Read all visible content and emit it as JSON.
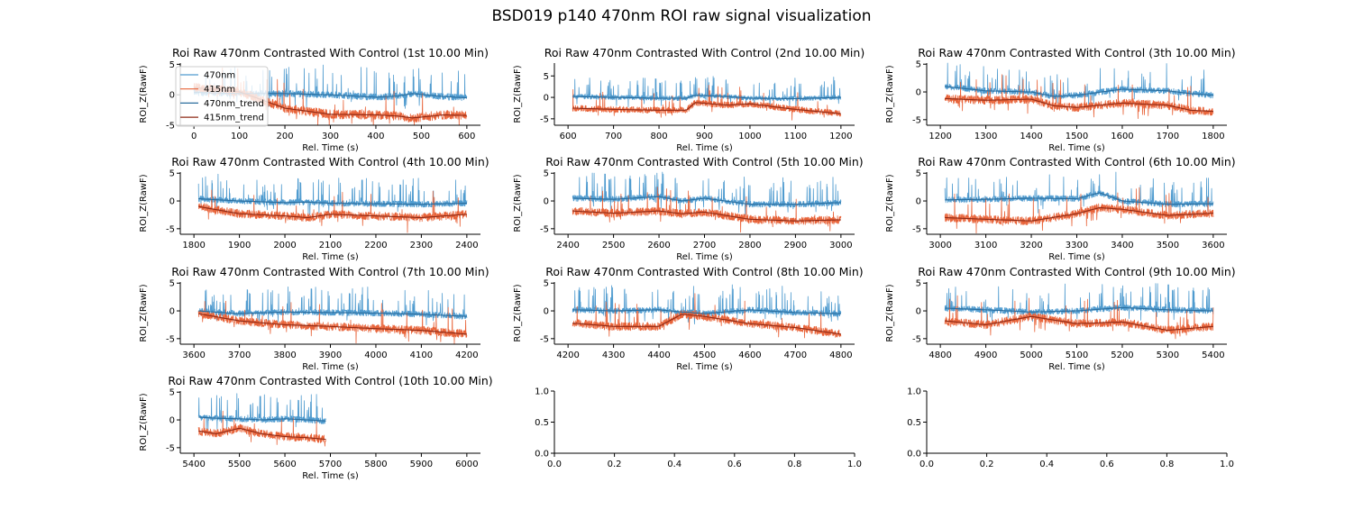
{
  "figure": {
    "title": "BSD019 p140 470nm ROI  raw signal visualization"
  },
  "legend": [
    "470nm",
    "415nm",
    "470nm_trend",
    "415nm_trend"
  ],
  "colors": {
    "470nm": "#4f9bcf",
    "415nm": "#e8643a",
    "470nm_trend": "#2b6e9e",
    "415nm_trend": "#8e2a16"
  },
  "chart_data": [
    {
      "type": "line",
      "title": "Roi Raw 470nm Contrasted With Control (1st 10.00 Min)",
      "xlabel": "Rel. Time (s)",
      "ylabel": "ROI_Z(RawF)",
      "xlim": [
        -30,
        630
      ],
      "ylim": [
        -5,
        5.2
      ],
      "xticks": [
        0,
        100,
        200,
        300,
        400,
        500,
        600
      ],
      "yticks": [
        -5,
        0,
        5
      ],
      "trend": {
        "x": [
          0,
          100,
          200,
          300,
          400,
          450,
          480,
          550,
          600
        ],
        "470nm": [
          0.4,
          0.2,
          0.2,
          0.0,
          -0.4,
          -0.2,
          0.2,
          -0.3,
          -0.5
        ],
        "415nm": [
          1.2,
          0.5,
          -2.2,
          -3.2,
          -3.3,
          -3.5,
          -3.8,
          -3.3,
          -3.4
        ]
      },
      "data_end": 600,
      "legend_visible": true
    },
    {
      "type": "line",
      "title": "Roi Raw 470nm Contrasted With Control (2nd 10.00 Min)",
      "xlabel": "Rel. Time (s)",
      "ylabel": "ROI_Z(RawF)",
      "xlim": [
        570,
        1230
      ],
      "ylim": [
        -6.5,
        8
      ],
      "xticks": [
        600,
        700,
        800,
        900,
        1000,
        1100,
        1200
      ],
      "yticks": [
        -5,
        0,
        5
      ],
      "trend": {
        "x": [
          610,
          700,
          800,
          860,
          880,
          950,
          1000,
          1100,
          1200
        ],
        "470nm": [
          0.2,
          0.0,
          -0.2,
          -0.2,
          0.5,
          0.2,
          -0.2,
          -0.3,
          0.0
        ],
        "415nm": [
          -2.5,
          -2.8,
          -3.0,
          -3.0,
          -1.2,
          -1.8,
          -1.5,
          -2.8,
          -3.8
        ]
      },
      "data_end": 1200
    },
    {
      "type": "line",
      "title": "Roi Raw 470nm Contrasted With Control (3th 10.00 Min)",
      "xlabel": "Rel. Time (s)",
      "ylabel": "ROI_Z(RawF)",
      "xlim": [
        1170,
        1830
      ],
      "ylim": [
        -6,
        5.2
      ],
      "xticks": [
        1200,
        1300,
        1400,
        1500,
        1600,
        1700,
        1800
      ],
      "yticks": [
        -5,
        0,
        5
      ],
      "trend": {
        "x": [
          1210,
          1300,
          1400,
          1450,
          1500,
          1600,
          1700,
          1750,
          1800
        ],
        "470nm": [
          1.0,
          0.2,
          0.0,
          -0.8,
          -0.6,
          0.5,
          0.2,
          -0.3,
          -0.6
        ],
        "415nm": [
          -1.2,
          -1.5,
          -1.3,
          -2.5,
          -2.8,
          -2.0,
          -2.4,
          -3.3,
          -3.5
        ]
      },
      "data_end": 1800
    },
    {
      "type": "line",
      "title": "Roi Raw 470nm Contrasted With Control (4th 10.00 Min)",
      "xlabel": "Rel. Time (s)",
      "ylabel": "ROI_Z(RawF)",
      "xlim": [
        1770,
        2430
      ],
      "ylim": [
        -6,
        5.2
      ],
      "xticks": [
        1800,
        1900,
        2000,
        2100,
        2200,
        2300,
        2400
      ],
      "yticks": [
        -5,
        0,
        5
      ],
      "trend": {
        "x": [
          1810,
          1900,
          2000,
          2050,
          2100,
          2200,
          2300,
          2400
        ],
        "470nm": [
          0.4,
          0.0,
          -0.3,
          -0.2,
          -0.4,
          -0.5,
          -0.6,
          -0.4
        ],
        "415nm": [
          -1.0,
          -2.3,
          -2.7,
          -3.0,
          -2.4,
          -2.7,
          -3.0,
          -2.4
        ]
      },
      "data_end": 2400
    },
    {
      "type": "line",
      "title": "Roi Raw 470nm Contrasted With Control (5th 10.00 Min)",
      "xlabel": "Rel. Time (s)",
      "ylabel": "ROI_Z(RawF)",
      "xlim": [
        2370,
        3030
      ],
      "ylim": [
        -6,
        5.2
      ],
      "xticks": [
        2400,
        2500,
        2600,
        2700,
        2800,
        2900,
        3000
      ],
      "yticks": [
        -5,
        0,
        5
      ],
      "trend": {
        "x": [
          2410,
          2500,
          2600,
          2650,
          2700,
          2800,
          2900,
          3000
        ],
        "470nm": [
          0.5,
          0.3,
          0.8,
          0.0,
          0.5,
          -0.6,
          -0.6,
          -0.3
        ],
        "415nm": [
          -1.8,
          -2.2,
          -1.8,
          -2.3,
          -2.0,
          -3.3,
          -3.6,
          -3.4
        ]
      },
      "data_end": 3000
    },
    {
      "type": "line",
      "title": "Roi Raw 470nm Contrasted With Control (6th 10.00 Min)",
      "xlabel": "Rel. Time (s)",
      "ylabel": "ROI_Z(RawF)",
      "xlim": [
        2970,
        3630
      ],
      "ylim": [
        -6,
        5.2
      ],
      "xticks": [
        3000,
        3100,
        3200,
        3300,
        3400,
        3500,
        3600
      ],
      "yticks": [
        -5,
        0,
        5
      ],
      "trend": {
        "x": [
          3010,
          3100,
          3200,
          3300,
          3350,
          3400,
          3500,
          3600
        ],
        "470nm": [
          0.2,
          0.3,
          0.5,
          0.4,
          1.5,
          0.0,
          -0.6,
          -0.5
        ],
        "415nm": [
          -3.0,
          -3.3,
          -3.6,
          -2.3,
          -1.2,
          -1.5,
          -2.6,
          -2.2
        ]
      },
      "data_end": 3600
    },
    {
      "type": "line",
      "title": "Roi Raw 470nm Contrasted With Control (7th 10.00 Min)",
      "xlabel": "Rel. Time (s)",
      "ylabel": "ROI_Z(RawF)",
      "xlim": [
        3570,
        4230
      ],
      "ylim": [
        -6,
        5.2
      ],
      "xticks": [
        3600,
        3700,
        3800,
        3900,
        4000,
        4100,
        4200
      ],
      "yticks": [
        -5,
        0,
        5
      ],
      "trend": {
        "x": [
          3610,
          3700,
          3800,
          3900,
          4000,
          4100,
          4200
        ],
        "470nm": [
          0.0,
          -0.5,
          -0.2,
          -0.3,
          -0.4,
          -0.6,
          -1.0
        ],
        "415nm": [
          -0.5,
          -1.8,
          -2.5,
          -2.8,
          -3.2,
          -3.5,
          -4.2
        ]
      },
      "data_end": 4200
    },
    {
      "type": "line",
      "title": "Roi Raw 470nm Contrasted With Control (8th 10.00 Min)",
      "xlabel": "Rel. Time (s)",
      "ylabel": "ROI_Z(RawF)",
      "xlim": [
        4170,
        4830
      ],
      "ylim": [
        -6,
        5.2
      ],
      "xticks": [
        4200,
        4300,
        4400,
        4500,
        4600,
        4700,
        4800
      ],
      "yticks": [
        -5,
        0,
        5
      ],
      "trend": {
        "x": [
          4210,
          4300,
          4400,
          4450,
          4500,
          4600,
          4700,
          4800
        ],
        "470nm": [
          0.2,
          0.0,
          0.2,
          -0.2,
          -0.5,
          0.2,
          -0.3,
          -0.5
        ],
        "415nm": [
          -2.2,
          -2.8,
          -2.8,
          -0.6,
          -1.0,
          -2.3,
          -3.0,
          -4.2
        ]
      },
      "data_end": 4800
    },
    {
      "type": "line",
      "title": "Roi Raw 470nm Contrasted With Control (9th 10.00 Min)",
      "xlabel": "Rel. Time (s)",
      "ylabel": "ROI_Z(RawF)",
      "xlim": [
        4770,
        5430
      ],
      "ylim": [
        -6,
        5.2
      ],
      "xticks": [
        4800,
        4900,
        5000,
        5100,
        5200,
        5300,
        5400
      ],
      "yticks": [
        -5,
        0,
        5
      ],
      "trend": {
        "x": [
          4810,
          4900,
          5000,
          5100,
          5200,
          5300,
          5400
        ],
        "470nm": [
          0.5,
          0.2,
          -0.2,
          0.0,
          0.6,
          0.2,
          0.0
        ],
        "415nm": [
          -1.8,
          -2.5,
          -1.0,
          -2.3,
          -2.0,
          -3.5,
          -2.8
        ]
      },
      "data_end": 5400
    },
    {
      "type": "line",
      "title": "Roi Raw 470nm Contrasted With Control (10th 10.00 Min)",
      "xlabel": "Rel. Time (s)",
      "ylabel": "ROI_Z(RawF)",
      "xlim": [
        5370,
        6030
      ],
      "ylim": [
        -6,
        5.2
      ],
      "xticks": [
        5400,
        5500,
        5600,
        5700,
        5800,
        5900,
        6000
      ],
      "yticks": [
        -5,
        0,
        5
      ],
      "trend": {
        "x": [
          5410,
          5450,
          5500,
          5550,
          5600,
          5650,
          5690
        ],
        "470nm": [
          0.5,
          0.3,
          0.2,
          0.0,
          0.2,
          0.0,
          -0.2
        ],
        "415nm": [
          -2.0,
          -2.5,
          -1.5,
          -2.5,
          -3.0,
          -3.2,
          -3.5
        ]
      },
      "data_end": 5690
    },
    {
      "type": "line",
      "title": "",
      "xlabel": "",
      "ylabel": "",
      "xlim": [
        0,
        1
      ],
      "ylim": [
        0,
        1
      ],
      "xticks": [
        0.0,
        0.2,
        0.4,
        0.6,
        0.8,
        1.0
      ],
      "yticks": [
        0.0,
        0.5,
        1.0
      ],
      "empty": true
    },
    {
      "type": "line",
      "title": "",
      "xlabel": "",
      "ylabel": "",
      "xlim": [
        0,
        1
      ],
      "ylim": [
        0,
        1
      ],
      "xticks": [
        0.0,
        0.2,
        0.4,
        0.6,
        0.8,
        1.0
      ],
      "yticks": [
        0.0,
        0.5,
        1.0
      ],
      "empty": true
    }
  ]
}
